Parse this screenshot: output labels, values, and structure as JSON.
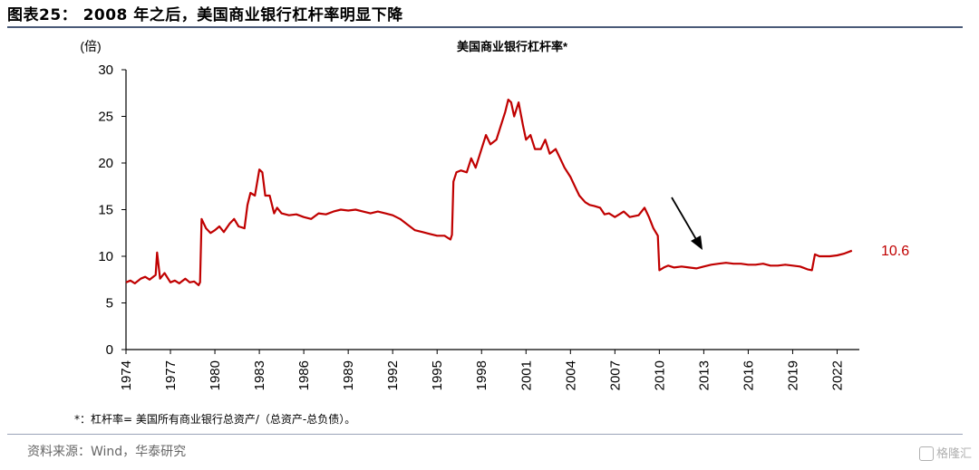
{
  "figure": {
    "title": "图表25：  2008 年之后，美国商业银行杠杆率明显下降",
    "note": "*：杠杆率= 美国所有商业银行总资产/（总资产-总负债）。",
    "source": "资料来源：Wind，华泰研究",
    "watermark": "格隆汇"
  },
  "chart_data": {
    "type": "line",
    "title": "美国商业银行杠杆率*",
    "ylabel": "(倍)",
    "xlabel": "",
    "ylim": [
      0,
      30
    ],
    "yticks": [
      0,
      5,
      10,
      15,
      20,
      25,
      30
    ],
    "xlim": [
      1974,
      2023.5
    ],
    "xticks": [
      "1974",
      "1977",
      "1980",
      "1983",
      "1986",
      "1989",
      "1992",
      "1995",
      "1998",
      "2001",
      "2004",
      "2007",
      "2010",
      "2013",
      "2016",
      "2019",
      "2022"
    ],
    "grid": false,
    "line_color": "#c00000",
    "end_label": "10.6",
    "series": [
      {
        "x": [
          1974.0,
          1974.3,
          1974.6,
          1975.0,
          1975.3,
          1975.6,
          1976.0,
          1976.1,
          1976.3,
          1976.6,
          1977.0,
          1977.3,
          1977.6,
          1978.0,
          1978.3,
          1978.6,
          1978.9,
          1979.0,
          1979.1,
          1979.4,
          1979.7,
          1980.0,
          1980.3,
          1980.6,
          1981.0,
          1981.3,
          1981.6,
          1982.0,
          1982.2,
          1982.4,
          1982.7,
          1983.0,
          1983.2,
          1983.4,
          1983.7,
          1984.0,
          1984.2,
          1984.5,
          1985.0,
          1985.5,
          1986.0,
          1986.5,
          1987.0,
          1987.5,
          1988.0,
          1988.5,
          1989.0,
          1989.5,
          1990.0,
          1990.5,
          1991.0,
          1991.5,
          1992.0,
          1992.5,
          1993.0,
          1993.5,
          1994.0,
          1994.5,
          1995.0,
          1995.5,
          1995.9,
          1996.0,
          1996.1,
          1996.3,
          1996.6,
          1997.0,
          1997.3,
          1997.6,
          1998.0,
          1998.3,
          1998.6,
          1999.0,
          1999.3,
          1999.6,
          1999.8,
          2000.0,
          2000.2,
          2000.5,
          2000.8,
          2001.0,
          2001.3,
          2001.6,
          2002.0,
          2002.3,
          2002.6,
          2003.0,
          2003.3,
          2003.6,
          2004.0,
          2004.3,
          2004.6,
          2005.0,
          2005.3,
          2005.6,
          2006.0,
          2006.3,
          2006.6,
          2007.0,
          2007.3,
          2007.6,
          2008.0,
          2008.3,
          2008.6,
          2009.0,
          2009.3,
          2009.6,
          2009.9,
          2010.0,
          2010.3,
          2010.6,
          2011.0,
          2011.5,
          2012.0,
          2012.5,
          2013.0,
          2013.5,
          2014.0,
          2014.5,
          2015.0,
          2015.5,
          2016.0,
          2016.5,
          2017.0,
          2017.5,
          2018.0,
          2018.5,
          2019.0,
          2019.5,
          2020.0,
          2020.3,
          2020.5,
          2020.8,
          2021.0,
          2021.5,
          2022.0,
          2022.5,
          2023.0
        ],
        "y": [
          7.2,
          7.4,
          7.1,
          7.6,
          7.8,
          7.5,
          8.0,
          10.4,
          7.6,
          8.2,
          7.2,
          7.4,
          7.1,
          7.6,
          7.2,
          7.3,
          6.9,
          7.2,
          14.0,
          13.0,
          12.5,
          12.8,
          13.2,
          12.6,
          13.5,
          14.0,
          13.2,
          13.0,
          15.5,
          16.8,
          16.5,
          19.3,
          19.0,
          16.5,
          16.5,
          14.6,
          15.2,
          14.6,
          14.4,
          14.5,
          14.2,
          14.0,
          14.6,
          14.5,
          14.8,
          15.0,
          14.9,
          15.0,
          14.8,
          14.6,
          14.8,
          14.6,
          14.4,
          14.0,
          13.4,
          12.8,
          12.6,
          12.4,
          12.2,
          12.2,
          11.8,
          12.3,
          18.0,
          19.0,
          19.2,
          19.0,
          20.5,
          19.5,
          21.5,
          23.0,
          22.0,
          22.5,
          24.0,
          25.5,
          26.8,
          26.5,
          25.0,
          26.5,
          24.0,
          22.5,
          23.0,
          21.5,
          21.5,
          22.5,
          21.0,
          21.5,
          20.5,
          19.5,
          18.5,
          17.5,
          16.5,
          15.8,
          15.5,
          15.4,
          15.2,
          14.5,
          14.6,
          14.2,
          14.5,
          14.8,
          14.2,
          14.3,
          14.4,
          15.2,
          14.2,
          13.0,
          12.2,
          8.5,
          8.8,
          9.0,
          8.8,
          8.9,
          8.8,
          8.7,
          8.9,
          9.1,
          9.2,
          9.3,
          9.2,
          9.2,
          9.1,
          9.1,
          9.2,
          9.0,
          9.0,
          9.1,
          9.0,
          8.9,
          8.6,
          8.5,
          10.2,
          10.0,
          10.0,
          10.0,
          10.1,
          10.3,
          10.6
        ]
      }
    ]
  }
}
